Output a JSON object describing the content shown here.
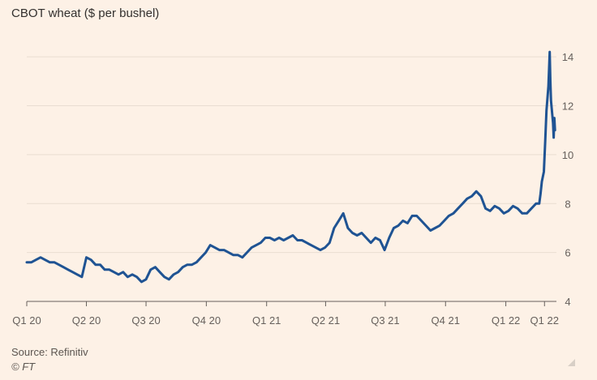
{
  "chart_data": {
    "type": "line",
    "title": "CBOT wheat ($ per bushel)",
    "xlabel": "",
    "ylabel": "",
    "ylim": [
      4,
      15
    ],
    "y_ticks": [
      4,
      6,
      8,
      10,
      12,
      14
    ],
    "x_tick_labels": [
      "Q1 20",
      "Q2 20",
      "Q3 20",
      "Q4 20",
      "Q1 21",
      "Q2 21",
      "Q3 21",
      "Q4 21",
      "Q1 22",
      "Q1 22"
    ],
    "x_tick_dates": [
      "2020-01-01",
      "2020-04-01",
      "2020-07-01",
      "2020-10-01",
      "2021-01-01",
      "2021-04-01",
      "2021-07-01",
      "2021-10-01",
      "2022-01-01",
      "2022-03-01"
    ],
    "x_range": [
      "2020-01-01",
      "2022-03-18"
    ],
    "grid": true,
    "line_color": "#1f5393",
    "series": [
      {
        "x": [
          "2020-01-01",
          "2020-01-08",
          "2020-01-15",
          "2020-01-22",
          "2020-01-29",
          "2020-02-05",
          "2020-02-12",
          "2020-02-19",
          "2020-02-26",
          "2020-03-04",
          "2020-03-11",
          "2020-03-18",
          "2020-03-25",
          "2020-04-01",
          "2020-04-08",
          "2020-04-15",
          "2020-04-22",
          "2020-04-29",
          "2020-05-06",
          "2020-05-13",
          "2020-05-20",
          "2020-05-27",
          "2020-06-03",
          "2020-06-10",
          "2020-06-17",
          "2020-06-24",
          "2020-07-01",
          "2020-07-08",
          "2020-07-15",
          "2020-07-22",
          "2020-07-29",
          "2020-08-05",
          "2020-08-12",
          "2020-08-19",
          "2020-08-26",
          "2020-09-02",
          "2020-09-09",
          "2020-09-16",
          "2020-09-23",
          "2020-09-30",
          "2020-10-07",
          "2020-10-14",
          "2020-10-21",
          "2020-10-28",
          "2020-11-04",
          "2020-11-11",
          "2020-11-18",
          "2020-11-25",
          "2020-12-02",
          "2020-12-09",
          "2020-12-16",
          "2020-12-23",
          "2020-12-30",
          "2021-01-06",
          "2021-01-13",
          "2021-01-20",
          "2021-01-27",
          "2021-02-03",
          "2021-02-10",
          "2021-02-17",
          "2021-02-24",
          "2021-03-03",
          "2021-03-10",
          "2021-03-17",
          "2021-03-24",
          "2021-03-31",
          "2021-04-07",
          "2021-04-14",
          "2021-04-21",
          "2021-04-28",
          "2021-05-05",
          "2021-05-12",
          "2021-05-19",
          "2021-05-26",
          "2021-06-02",
          "2021-06-09",
          "2021-06-16",
          "2021-06-23",
          "2021-06-30",
          "2021-07-07",
          "2021-07-14",
          "2021-07-21",
          "2021-07-28",
          "2021-08-04",
          "2021-08-11",
          "2021-08-18",
          "2021-08-25",
          "2021-09-01",
          "2021-09-08",
          "2021-09-15",
          "2021-09-22",
          "2021-09-29",
          "2021-10-06",
          "2021-10-13",
          "2021-10-20",
          "2021-10-27",
          "2021-11-03",
          "2021-11-10",
          "2021-11-17",
          "2021-11-24",
          "2021-12-01",
          "2021-12-08",
          "2021-12-15",
          "2021-12-22",
          "2021-12-29",
          "2022-01-05",
          "2022-01-12",
          "2022-01-19",
          "2022-01-26",
          "2022-02-02",
          "2022-02-09",
          "2022-02-16",
          "2022-02-21",
          "2022-02-23",
          "2022-02-25",
          "2022-02-28",
          "2022-03-02",
          "2022-03-04",
          "2022-03-07",
          "2022-03-08",
          "2022-03-09",
          "2022-03-10",
          "2022-03-11",
          "2022-03-14",
          "2022-03-15",
          "2022-03-16",
          "2022-03-17"
        ],
        "values": [
          5.6,
          5.6,
          5.7,
          5.8,
          5.7,
          5.6,
          5.6,
          5.5,
          5.4,
          5.3,
          5.2,
          5.1,
          5.0,
          5.8,
          5.7,
          5.5,
          5.5,
          5.3,
          5.3,
          5.2,
          5.1,
          5.2,
          5.0,
          5.1,
          5.0,
          4.8,
          4.9,
          5.3,
          5.4,
          5.2,
          5.0,
          4.9,
          5.1,
          5.2,
          5.4,
          5.5,
          5.5,
          5.6,
          5.8,
          6.0,
          6.3,
          6.2,
          6.1,
          6.1,
          6.0,
          5.9,
          5.9,
          5.8,
          6.0,
          6.2,
          6.3,
          6.4,
          6.6,
          6.6,
          6.5,
          6.6,
          6.5,
          6.6,
          6.7,
          6.5,
          6.5,
          6.4,
          6.3,
          6.2,
          6.1,
          6.2,
          6.4,
          7.0,
          7.3,
          7.6,
          7.0,
          6.8,
          6.7,
          6.8,
          6.6,
          6.4,
          6.6,
          6.5,
          6.1,
          6.6,
          7.0,
          7.1,
          7.3,
          7.2,
          7.5,
          7.5,
          7.3,
          7.1,
          6.9,
          7.0,
          7.1,
          7.3,
          7.5,
          7.6,
          7.8,
          8.0,
          8.2,
          8.3,
          8.5,
          8.3,
          7.8,
          7.7,
          7.9,
          7.8,
          7.6,
          7.7,
          7.9,
          7.8,
          7.6,
          7.6,
          7.8,
          8.0,
          8.0,
          8.4,
          8.9,
          9.3,
          10.5,
          11.8,
          12.8,
          13.5,
          14.2,
          13.0,
          12.2,
          11.3,
          10.7,
          11.5,
          11.0
        ]
      }
    ]
  },
  "footer": {
    "source": "Source: Refinitiv",
    "credit": "© FT"
  }
}
